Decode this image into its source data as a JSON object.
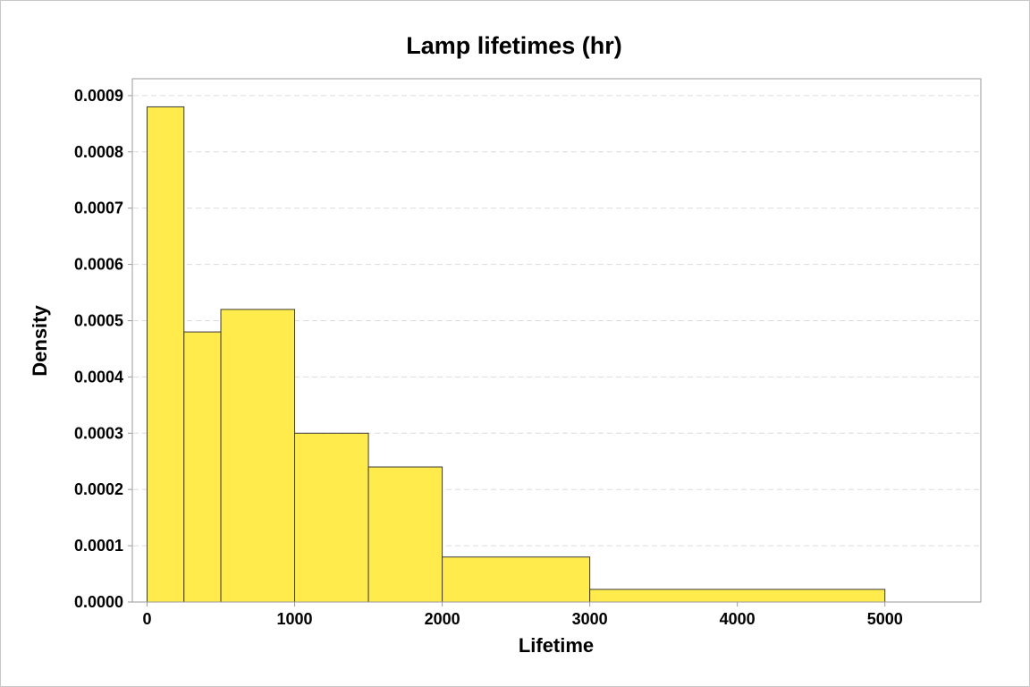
{
  "chart_data": {
    "type": "bar",
    "title": "Lamp lifetimes (hr)",
    "xlabel": "Lifetime",
    "ylabel": "Density",
    "xlim": [
      -100,
      5650
    ],
    "ylim": [
      0,
      0.00093
    ],
    "x_ticks": [
      0,
      1000,
      2000,
      3000,
      4000,
      5000
    ],
    "x_tick_labels": [
      "0",
      "1000",
      "2000",
      "3000",
      "4000",
      "5000"
    ],
    "y_ticks": [
      0,
      0.0001,
      0.0002,
      0.0003,
      0.0004,
      0.0005,
      0.0006,
      0.0007,
      0.0008,
      0.0009
    ],
    "y_tick_labels": [
      "0.0000",
      "0.0001",
      "0.0002",
      "0.0003",
      "0.0004",
      "0.0005",
      "0.0006",
      "0.0007",
      "0.0008",
      "0.0009"
    ],
    "bins": [
      {
        "x0": 0,
        "x1": 250,
        "density": 0.00088
      },
      {
        "x0": 250,
        "x1": 500,
        "density": 0.00048
      },
      {
        "x0": 500,
        "x1": 1000,
        "density": 0.00052
      },
      {
        "x0": 1000,
        "x1": 1500,
        "density": 0.0003
      },
      {
        "x0": 1500,
        "x1": 2000,
        "density": 0.00024
      },
      {
        "x0": 2000,
        "x1": 3000,
        "density": 8e-05
      },
      {
        "x0": 3000,
        "x1": 5000,
        "density": 2.25e-05
      }
    ],
    "grid": "horizontal-dashed",
    "colors": {
      "bar_fill": "#ffeb4c",
      "bar_stroke": "#3a3a3a",
      "grid": "#dcdcdc",
      "plot_border": "#9a9a9a"
    }
  }
}
